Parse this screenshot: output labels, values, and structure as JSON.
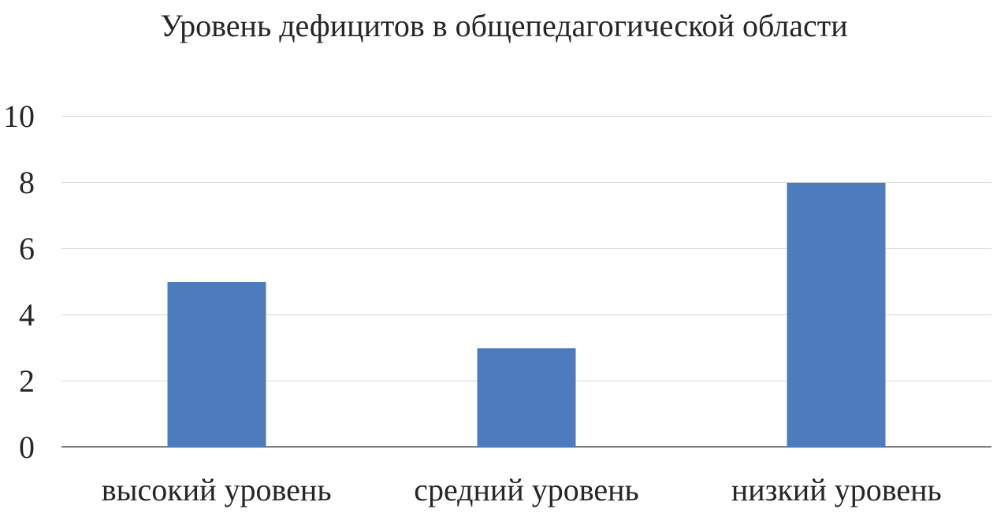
{
  "chart_data": {
    "type": "bar",
    "title": "Уровень дефицитов в общепедагогической области",
    "categories": [
      "высокий уровень",
      "средний уровень",
      "низкий уровень"
    ],
    "values": [
      5,
      3,
      8
    ],
    "xlabel": "",
    "ylabel": "",
    "ylim": [
      0,
      10
    ],
    "yticks": [
      0,
      2,
      4,
      6,
      8,
      10
    ],
    "grid": true,
    "legend": "none",
    "bar_color": "#4c7cbc",
    "gridline_color": "#d9d9d9",
    "axis_color": "#7f7f7f"
  }
}
